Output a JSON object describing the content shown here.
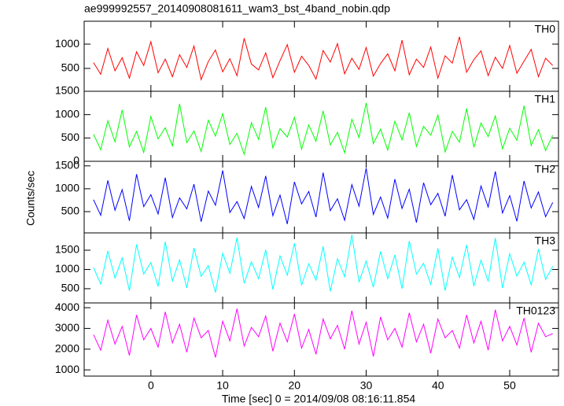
{
  "chart_data": {
    "type": "line",
    "title": "ae999992557_20140908081611_wam3_bst_4band_nobin.qdp",
    "xlabel": "Time [sec] 0 = 2014/09/08 08:16:11.854",
    "ylabel": "Counts/sec",
    "xlim": [
      -9.3,
      56.8
    ],
    "xticks": [
      0,
      10,
      20,
      30,
      40,
      50
    ],
    "x": [
      -8,
      -7,
      -6,
      -5,
      -4,
      -3,
      -2,
      -1,
      0,
      1,
      2,
      3,
      4,
      5,
      6,
      7,
      8,
      9,
      10,
      11,
      12,
      13,
      14,
      15,
      16,
      17,
      18,
      19,
      20,
      21,
      22,
      23,
      24,
      25,
      26,
      27,
      28,
      29,
      30,
      31,
      32,
      33,
      34,
      35,
      36,
      37,
      38,
      39,
      40,
      41,
      42,
      43,
      44,
      45,
      46,
      47,
      48,
      49,
      50,
      51,
      52,
      53,
      54,
      55,
      56
    ],
    "panels": [
      {
        "name": "TH0",
        "color": "#ff0000",
        "ylim": [
          30,
          1470
        ],
        "yticks": [
          500,
          1000
        ],
        "values": [
          620,
          380,
          910,
          450,
          720,
          300,
          840,
          560,
          1050,
          410,
          690,
          330,
          780,
          520,
          960,
          270,
          640,
          880,
          430,
          700,
          350,
          1120,
          590,
          470,
          820,
          310,
          660,
          990,
          420,
          750,
          560,
          280,
          870,
          630,
          1010,
          390,
          710,
          480,
          930,
          340,
          600,
          800,
          450,
          1080,
          370,
          690,
          520,
          940,
          300,
          760,
          610,
          1150,
          420,
          680,
          860,
          350,
          730,
          500,
          970,
          400,
          650,
          890,
          330,
          710,
          560
        ]
      },
      {
        "name": "TH1",
        "color": "#00ff00",
        "ylim": [
          0,
          1500
        ],
        "yticks": [
          0,
          500,
          1000,
          1500
        ],
        "values": [
          580,
          250,
          870,
          420,
          1100,
          310,
          640,
          190,
          960,
          480,
          720,
          330,
          1230,
          400,
          650,
          210,
          880,
          540,
          1020,
          360,
          600,
          150,
          830,
          470,
          1160,
          290,
          700,
          520,
          940,
          260,
          780,
          430,
          1080,
          350,
          620,
          180,
          900,
          510,
          1250,
          380,
          690,
          240,
          860,
          460,
          1040,
          320,
          750,
          560,
          990,
          200,
          640,
          410,
          1130,
          300,
          820,
          530,
          970,
          270,
          710,
          450,
          1190,
          340,
          680,
          230,
          560
        ]
      },
      {
        "name": "TH2",
        "color": "#0000ff",
        "ylim": [
          35,
          1600
        ],
        "yticks": [
          500,
          1000,
          1500
        ],
        "values": [
          760,
          420,
          1180,
          530,
          980,
          300,
          1320,
          610,
          870,
          450,
          1240,
          370,
          800,
          560,
          1100,
          280,
          950,
          640,
          1400,
          480,
          720,
          350,
          1050,
          590,
          1280,
          410,
          860,
          230,
          1150,
          670,
          940,
          380,
          1350,
          520,
          780,
          310,
          1090,
          620,
          1450,
          440,
          820,
          360,
          1210,
          570,
          990,
          260,
          1130,
          650,
          900,
          400,
          1300,
          540,
          760,
          330,
          1060,
          600,
          1380,
          470,
          850,
          290,
          1170,
          580,
          930,
          390,
          700
        ]
      },
      {
        "name": "TH3",
        "color": "#00ffff",
        "ylim": [
          130,
          1950
        ],
        "yticks": [
          500,
          1000,
          1500
        ],
        "values": [
          1050,
          620,
          1480,
          780,
          1300,
          450,
          1650,
          880,
          1180,
          560,
          1720,
          700,
          1250,
          520,
          1560,
          820,
          1100,
          400,
          1420,
          900,
          1830,
          640,
          1200,
          760,
          1510,
          480,
          1350,
          850,
          1680,
          590,
          1150,
          720,
          1600,
          430,
          1280,
          810,
          1900,
          670,
          1220,
          540,
          1470,
          760,
          1380,
          500,
          1740,
          880,
          1160,
          610,
          1550,
          450,
          1320,
          790,
          1640,
          570,
          1240,
          690,
          1820,
          520,
          1410,
          830,
          1190,
          600,
          1530,
          740,
          1080
        ]
      },
      {
        "name": "TH0123",
        "color": "#ff00ff",
        "ylim": [
          700,
          4230
        ],
        "yticks": [
          1000,
          2000,
          3000,
          4000
        ],
        "values": [
          2700,
          1950,
          3400,
          2250,
          3100,
          1700,
          3650,
          2450,
          3000,
          2100,
          3800,
          2300,
          3200,
          1850,
          3500,
          2550,
          2900,
          1600,
          3350,
          2400,
          3950,
          2150,
          3050,
          2600,
          3600,
          1900,
          3250,
          2350,
          3700,
          2050,
          2950,
          1750,
          3450,
          2500,
          3150,
          2000,
          3850,
          2250,
          3300,
          1650,
          3550,
          2450,
          3000,
          2100,
          3750,
          2350,
          3200,
          1800,
          3450,
          2550,
          2900,
          2050,
          3650,
          2300,
          3350,
          1950,
          3900,
          2400,
          3100,
          2200,
          3500,
          1850,
          3250,
          2600,
          2750
        ]
      }
    ]
  }
}
